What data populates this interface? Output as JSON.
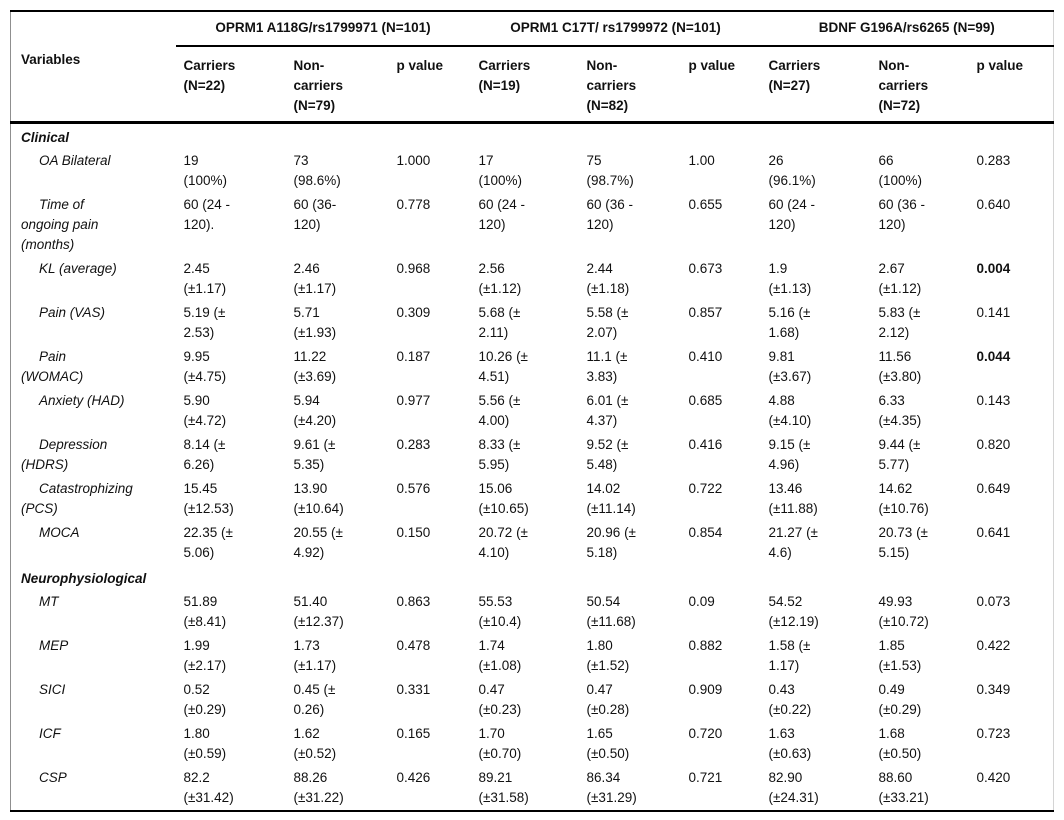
{
  "header": {
    "variables_label": "Variables",
    "groups": [
      {
        "label": "OPRM1 A118G/rs1799971 (N=101)",
        "columns": [
          "Carriers\n(N=22)",
          "Non-\ncarriers\n(N=79)",
          "p value"
        ]
      },
      {
        "label": "OPRM1 C17T/ rs1799972 (N=101)",
        "columns": [
          "Carriers\n(N=19)",
          "Non-\ncarriers\n(N=82)",
          "p value"
        ]
      },
      {
        "label": "BDNF G196A/rs6265 (N=99)",
        "columns": [
          "Carriers\n(N=27)",
          "Non-\ncarriers\n(N=72)",
          "p value"
        ]
      }
    ]
  },
  "sections": [
    {
      "title": "Clinical",
      "rows": [
        {
          "label": "OA Bilateral",
          "cells": [
            "19\n(100%)",
            "73\n(98.6%)",
            "1.000",
            "17\n(100%)",
            "75\n(98.7%)",
            "1.00",
            "26\n(96.1%)",
            "66\n(100%)",
            "0.283"
          ],
          "bold": []
        },
        {
          "label": "Time of\nongoing pain\n(months)",
          "cells": [
            "60 (24 -\n120).",
            "60 (36-\n120)",
            "0.778",
            "60 (24 -\n120)",
            "60 (36 -\n120)",
            "0.655",
            "60 (24 -\n120)",
            "60 (36 -\n120)",
            "0.640"
          ],
          "bold": []
        },
        {
          "label": "KL (average)",
          "cells": [
            "2.45\n(±1.17)",
            "2.46\n(±1.17)",
            "0.968",
            "2.56\n(±1.12)",
            "2.44\n(±1.18)",
            "0.673",
            "1.9\n(±1.13)",
            "2.67\n(±1.12)",
            "0.004"
          ],
          "bold": [
            8
          ]
        },
        {
          "label": "Pain (VAS)",
          "cells": [
            "5.19 (±\n2.53)",
            "5.71\n(±1.93)",
            "0.309",
            "5.68 (±\n2.11)",
            "5.58 (±\n2.07)",
            "0.857",
            "5.16 (±\n1.68)",
            "5.83 (±\n2.12)",
            "0.141"
          ],
          "bold": []
        },
        {
          "label": "Pain\n(WOMAC)",
          "cells": [
            "9.95\n(±4.75)",
            "11.22\n(±3.69)",
            "0.187",
            "10.26 (±\n4.51)",
            "11.1 (±\n3.83)",
            "0.410",
            "9.81\n(±3.67)",
            "11.56\n(±3.80)",
            "0.044"
          ],
          "bold": [
            8
          ]
        },
        {
          "label": "Anxiety (HAD)",
          "cells": [
            "5.90\n(±4.72)",
            "5.94\n(±4.20)",
            "0.977",
            "5.56 (±\n4.00)",
            "6.01 (±\n4.37)",
            "0.685",
            "4.88\n(±4.10)",
            "6.33\n(±4.35)",
            "0.143"
          ],
          "bold": []
        },
        {
          "label": "Depression\n(HDRS)",
          "cells": [
            "8.14 (±\n6.26)",
            "9.61 (±\n5.35)",
            "0.283",
            "8.33 (±\n5.95)",
            "9.52 (±\n5.48)",
            "0.416",
            "9.15 (±\n4.96)",
            "9.44 (±\n5.77)",
            "0.820"
          ],
          "bold": []
        },
        {
          "label": "Catastrophizing\n(PCS)",
          "cells": [
            "15.45\n(±12.53)",
            "13.90\n(±10.64)",
            "0.576",
            "15.06\n(±10.65)",
            "14.02\n(±11.14)",
            "0.722",
            "13.46\n(±11.88)",
            "14.62\n(±10.76)",
            "0.649"
          ],
          "bold": []
        },
        {
          "label": "MOCA",
          "cells": [
            "22.35 (±\n5.06)",
            "20.55 (±\n4.92)",
            "0.150",
            "20.72 (±\n4.10)",
            "20.96 (±\n5.18)",
            "0.854",
            "21.27 (±\n4.6)",
            "20.73 (±\n5.15)",
            "0.641"
          ],
          "bold": []
        }
      ]
    },
    {
      "title": "Neurophysiological",
      "rows": [
        {
          "label": "MT",
          "cells": [
            "51.89\n(±8.41)",
            "51.40\n(±12.37)",
            "0.863",
            "55.53\n(±10.4)",
            "50.54\n(±11.68)",
            "0.09",
            "54.52\n(±12.19)",
            "49.93\n(±10.72)",
            "0.073"
          ],
          "bold": []
        },
        {
          "label": "MEP",
          "cells": [
            "1.99\n(±2.17)",
            "1.73\n(±1.17)",
            "0.478",
            "1.74\n(±1.08)",
            "1.80\n(±1.52)",
            "0.882",
            "1.58 (±\n1.17)",
            "1.85\n(±1.53)",
            "0.422"
          ],
          "bold": []
        },
        {
          "label": "SICI",
          "cells": [
            "0.52\n(±0.29)",
            "0.45 (±\n0.26)",
            "0.331",
            "0.47\n(±0.23)",
            "0.47\n(±0.28)",
            "0.909",
            "0.43\n(±0.22)",
            "0.49\n(±0.29)",
            "0.349"
          ],
          "bold": []
        },
        {
          "label": "ICF",
          "cells": [
            "1.80\n(±0.59)",
            "1.62\n(±0.52)",
            "0.165",
            "1.70\n(±0.70)",
            "1.65\n(±0.50)",
            "0.720",
            "1.63\n(±0.63)",
            "1.68\n(±0.50)",
            "0.723"
          ],
          "bold": []
        },
        {
          "label": "CSP",
          "cells": [
            "82.2\n(±31.42)",
            "88.26\n(±31.22)",
            "0.426",
            "89.21\n(±31.58)",
            "86.34\n(±31.29)",
            "0.721",
            "82.90\n(±24.31)",
            "88.60\n(±33.21)",
            "0.420"
          ],
          "bold": []
        }
      ]
    }
  ],
  "colors": {
    "rule": "#000000",
    "text": "#111111",
    "side_border_left": "#8f8f8f",
    "side_border_right": "#d4d4d4"
  }
}
